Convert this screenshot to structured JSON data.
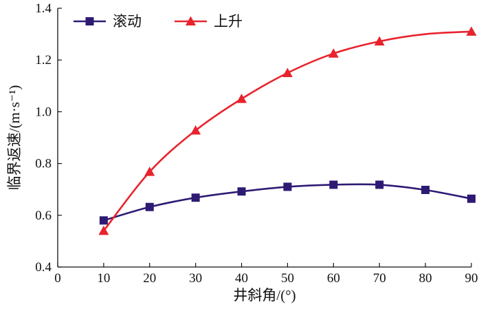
{
  "chart_data": {
    "type": "line",
    "xlabel": "井斜角/(°)",
    "ylabel": "临界返速/(m·s⁻¹)",
    "xlim": [
      0,
      90
    ],
    "ylim": [
      0.4,
      1.4
    ],
    "xticks": [
      "0",
      "10",
      "20",
      "30",
      "40",
      "50",
      "60",
      "70",
      "80",
      "90"
    ],
    "yticks": [
      "0.4",
      "0.6",
      "0.8",
      "1.0",
      "1.2",
      "1.4"
    ],
    "grid": false,
    "legend_position": "top-left",
    "series": [
      {
        "name": "滚动",
        "marker": "square",
        "color": "#2e1a73",
        "x": [
          10,
          20,
          30,
          40,
          50,
          60,
          70,
          80,
          90
        ],
        "values": [
          0.58,
          0.632,
          0.668,
          0.692,
          0.71,
          0.718,
          0.718,
          0.698,
          0.664
        ]
      },
      {
        "name": "上升",
        "marker": "triangle",
        "color": "#e8232d",
        "x": [
          10,
          20,
          30,
          40,
          50,
          60,
          70,
          80,
          90
        ],
        "values": [
          0.54,
          0.768,
          0.928,
          1.05,
          1.15,
          1.225,
          1.272,
          1.3,
          1.31
        ],
        "hidden_markers": [
          80
        ]
      }
    ]
  }
}
